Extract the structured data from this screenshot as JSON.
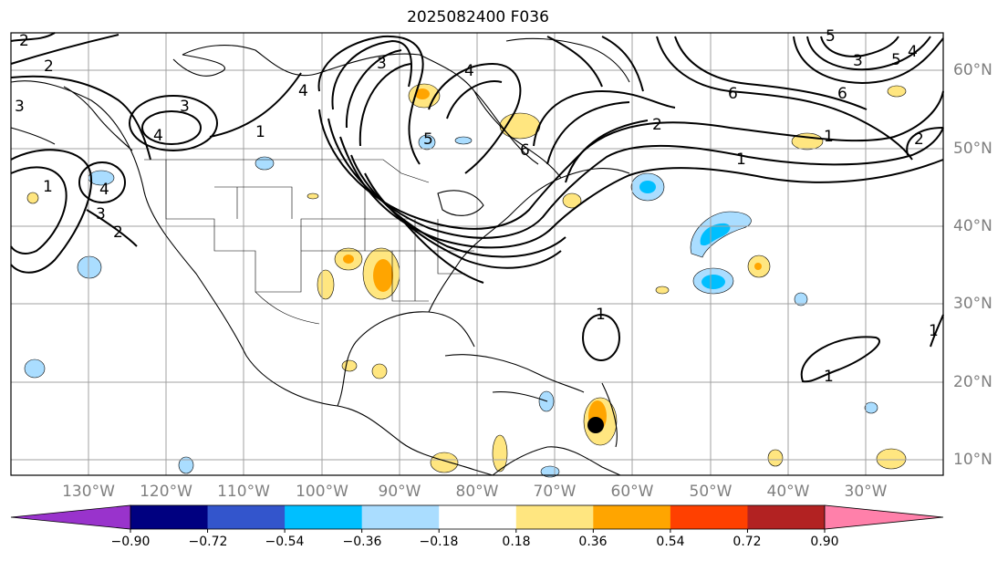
{
  "title": "2025082400 F036",
  "lon_labels": [
    "130°W",
    "120°W",
    "110°W",
    "100°W",
    "90°W",
    "80°W",
    "70°W",
    "60°W",
    "50°W",
    "40°W",
    "30°W"
  ],
  "lat_labels": [
    "60°N",
    "50°N",
    "40°N",
    "30°N",
    "20°N",
    "10°N"
  ],
  "colorbar": {
    "tick_labels": [
      "−0.90",
      "−0.72",
      "−0.54",
      "−0.36",
      "−0.18",
      "0.18",
      "0.36",
      "0.54",
      "0.72",
      "0.90"
    ],
    "colors": [
      "#9933cc",
      "#000080",
      "#3355cc",
      "#00bfff",
      "#aaddff",
      "#ffffff",
      "#ffe680",
      "#ffa500",
      "#ff4000",
      "#b22222",
      "#ff80aa"
    ]
  },
  "contour_labels": [
    "2",
    "2",
    "3",
    "4",
    "3",
    "1",
    "4",
    "4",
    "3",
    "2",
    "1",
    "3",
    "4",
    "5",
    "6",
    "2",
    "1",
    "6",
    "6",
    "5",
    "1",
    "4",
    "3",
    "5",
    "2",
    "1",
    "1",
    "1"
  ],
  "marker": "storm-center"
}
